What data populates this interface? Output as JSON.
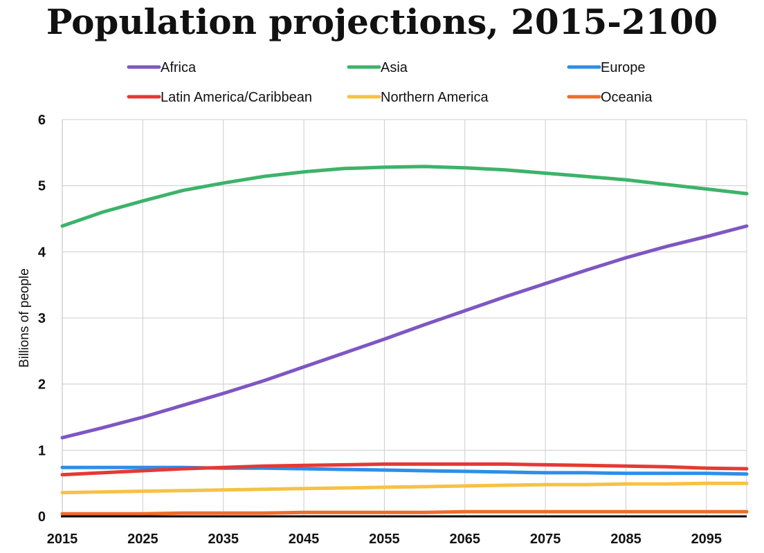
{
  "chart_data": {
    "type": "line",
    "title": "Population projections, 2015-2100",
    "xlabel": "",
    "ylabel": "Billions of people",
    "xlim": [
      2015,
      2100
    ],
    "ylim": [
      0,
      6
    ],
    "x_ticks": [
      2015,
      2025,
      2035,
      2045,
      2055,
      2065,
      2075,
      2085,
      2095
    ],
    "y_ticks": [
      0,
      1,
      2,
      3,
      4,
      5,
      6
    ],
    "grid": true,
    "legend_position": "top",
    "x": [
      2015,
      2020,
      2025,
      2030,
      2035,
      2040,
      2045,
      2050,
      2055,
      2060,
      2065,
      2070,
      2075,
      2080,
      2085,
      2090,
      2095,
      2100
    ],
    "series": [
      {
        "name": "Africa",
        "color": "#7e57c2",
        "values": [
          1.19,
          1.34,
          1.5,
          1.68,
          1.86,
          2.05,
          2.26,
          2.47,
          2.68,
          2.9,
          3.11,
          3.32,
          3.52,
          3.72,
          3.91,
          4.08,
          4.23,
          4.39
        ]
      },
      {
        "name": "Asia",
        "color": "#3cb36a",
        "values": [
          4.39,
          4.6,
          4.77,
          4.93,
          5.04,
          5.14,
          5.21,
          5.26,
          5.28,
          5.29,
          5.27,
          5.24,
          5.19,
          5.14,
          5.09,
          5.02,
          4.95,
          4.88
        ]
      },
      {
        "name": "Europe",
        "color": "#2e8ee8",
        "values": [
          0.74,
          0.74,
          0.74,
          0.74,
          0.73,
          0.73,
          0.72,
          0.71,
          0.7,
          0.69,
          0.68,
          0.67,
          0.66,
          0.66,
          0.65,
          0.65,
          0.65,
          0.64
        ]
      },
      {
        "name": "Latin America/Caribbean",
        "color": "#e53935",
        "values": [
          0.63,
          0.66,
          0.69,
          0.72,
          0.74,
          0.76,
          0.77,
          0.78,
          0.79,
          0.79,
          0.79,
          0.79,
          0.78,
          0.77,
          0.76,
          0.75,
          0.73,
          0.72
        ]
      },
      {
        "name": "Northern America",
        "color": "#f6c244",
        "values": [
          0.36,
          0.37,
          0.38,
          0.39,
          0.4,
          0.41,
          0.42,
          0.43,
          0.44,
          0.45,
          0.46,
          0.47,
          0.48,
          0.48,
          0.49,
          0.49,
          0.5,
          0.5
        ]
      },
      {
        "name": "Oceania",
        "color": "#ef6c2c",
        "values": [
          0.04,
          0.04,
          0.04,
          0.05,
          0.05,
          0.05,
          0.06,
          0.06,
          0.06,
          0.06,
          0.07,
          0.07,
          0.07,
          0.07,
          0.07,
          0.07,
          0.07,
          0.07
        ]
      }
    ]
  }
}
